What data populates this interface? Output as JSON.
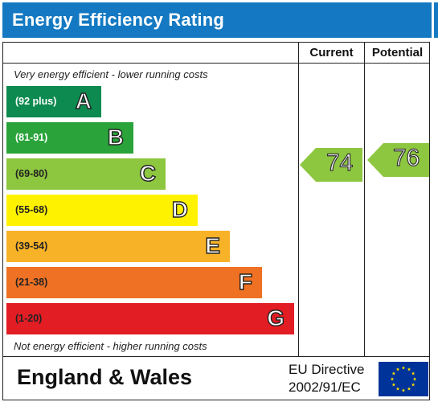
{
  "title": "Energy Efficiency Rating",
  "columns": {
    "current": "Current",
    "potential": "Potential"
  },
  "notes": {
    "top": "Very energy efficient - lower running costs",
    "bottom": "Not energy efficient - higher running costs"
  },
  "bands": [
    {
      "range": "(92 plus)",
      "letter": "A",
      "color": "#0d8a4f",
      "range_color": "#ffffff"
    },
    {
      "range": "(81-91)",
      "letter": "B",
      "color": "#2aa33a",
      "range_color": "#ffffff"
    },
    {
      "range": "(69-80)",
      "letter": "C",
      "color": "#8dc63f",
      "range_color": "#222222"
    },
    {
      "range": "(55-68)",
      "letter": "D",
      "color": "#fff200",
      "range_color": "#222222"
    },
    {
      "range": "(39-54)",
      "letter": "E",
      "color": "#f7b228",
      "range_color": "#222222"
    },
    {
      "range": "(21-38)",
      "letter": "F",
      "color": "#ef7123",
      "range_color": "#222222"
    },
    {
      "range": "(1-20)",
      "letter": "G",
      "color": "#e21d24",
      "range_color": "#222222"
    }
  ],
  "ratings": {
    "current": {
      "value": "74",
      "band": "C",
      "color": "#8dc63f"
    },
    "potential": {
      "value": "76",
      "band": "C",
      "color": "#8dc63f"
    }
  },
  "footer": {
    "region": "England & Wales",
    "directive_line1": "EU Directive",
    "directive_line2": "2002/91/EC",
    "flag_icon": "eu-flag-icon"
  },
  "colors": {
    "title_bar": "#1479c2",
    "eu_blue": "#003399",
    "eu_star": "#ffdd00"
  }
}
